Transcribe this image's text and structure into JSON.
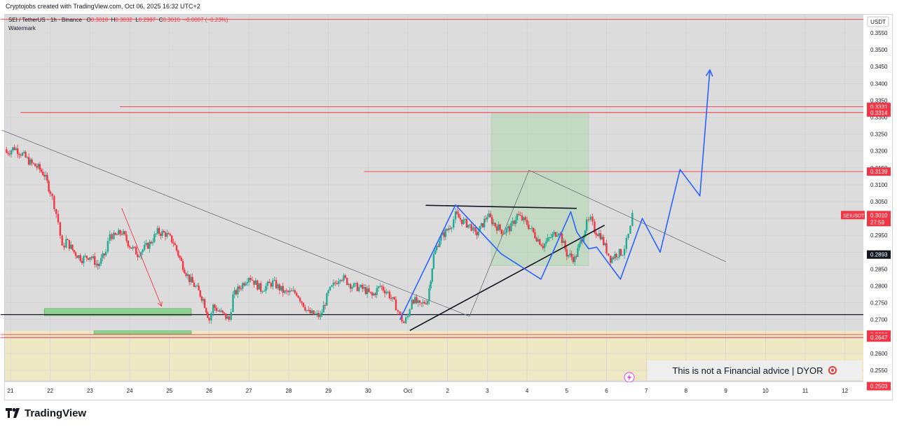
{
  "header": {
    "caption": "Cryptojobs created with TradingView.com, Oct 06, 2025 16:32 UTC+2"
  },
  "legend": {
    "symbol": "SEI / TetherUS · 1h · Binance",
    "o_label": "O",
    "o": "0.3018",
    "h_label": "H",
    "h": "0.3032",
    "l_label": "L",
    "l": "0.2997",
    "c_label": "C",
    "c": "0.3010",
    "change": "−0.0007 (−0.23%)",
    "watermark": "Watermark"
  },
  "footer": {
    "brand": "TradingView"
  },
  "disclaimer": {
    "text": "This is not a Financial advice | DYOR"
  },
  "colors": {
    "up": "#22ab94",
    "down": "#f23645",
    "blue": "#2962ff",
    "price_label": "#f23645",
    "zone_green": "#a5d6a7",
    "zone_yellow": "#fff3b0"
  },
  "chart_data": {
    "type": "candlestick",
    "currency": "USDT",
    "ylim": [
      0.2495,
      0.3605
    ],
    "y_ticks": [
      "0.3550",
      "0.3500",
      "0.3450",
      "0.3400",
      "0.3350",
      "0.3300",
      "0.3250",
      "0.3200",
      "0.3150",
      "0.3100",
      "0.3050",
      "0.3000",
      "0.2950",
      "0.2900",
      "0.2850",
      "0.2800",
      "0.2750",
      "0.2700",
      "0.2650",
      "0.2600",
      "0.2550"
    ],
    "x_ticks": [
      "21",
      "22",
      "23",
      "24",
      "25",
      "26",
      "27",
      "28",
      "29",
      "30",
      "Oct",
      "2",
      "3",
      "4",
      "5",
      "6",
      "7",
      "8",
      "9",
      "10",
      "11",
      "12"
    ],
    "price_labels": [
      {
        "value": "0.3331",
        "price": 0.3331
      },
      {
        "value": "0.3314",
        "price": 0.3314
      },
      {
        "value": "0.3139",
        "price": 0.3139
      },
      {
        "value": "0.2656",
        "price": 0.2656
      },
      {
        "value": "0.2647",
        "price": 0.2647
      },
      {
        "value": "0.2503",
        "price": 0.2503
      }
    ],
    "current_price": {
      "symbol": "SEIUSDT",
      "value": "0.3010",
      "countdown": "27:59",
      "price": 0.301
    },
    "marker_price": {
      "value": "0.2893",
      "price": 0.2893
    },
    "candles": [
      {
        "d": 20.9,
        "p": 0.3195
      },
      {
        "d": 21.1,
        "p": 0.321
      },
      {
        "d": 21.3,
        "p": 0.319
      },
      {
        "d": 21.5,
        "p": 0.3165
      },
      {
        "d": 21.7,
        "p": 0.315
      },
      {
        "d": 21.85,
        "p": 0.313
      },
      {
        "d": 22.0,
        "p": 0.308
      },
      {
        "d": 22.1,
        "p": 0.304
      },
      {
        "d": 22.2,
        "p": 0.299
      },
      {
        "d": 22.3,
        "p": 0.291
      },
      {
        "d": 22.4,
        "p": 0.2935
      },
      {
        "d": 22.6,
        "p": 0.29
      },
      {
        "d": 22.8,
        "p": 0.288
      },
      {
        "d": 23.0,
        "p": 0.289
      },
      {
        "d": 23.2,
        "p": 0.286
      },
      {
        "d": 23.4,
        "p": 0.29
      },
      {
        "d": 23.5,
        "p": 0.2955
      },
      {
        "d": 23.6,
        "p": 0.2945
      },
      {
        "d": 23.8,
        "p": 0.296
      },
      {
        "d": 24.0,
        "p": 0.292
      },
      {
        "d": 24.2,
        "p": 0.2895
      },
      {
        "d": 24.5,
        "p": 0.2925
      },
      {
        "d": 24.7,
        "p": 0.296
      },
      {
        "d": 24.9,
        "p": 0.2955
      },
      {
        "d": 25.1,
        "p": 0.293
      },
      {
        "d": 25.3,
        "p": 0.287
      },
      {
        "d": 25.5,
        "p": 0.282
      },
      {
        "d": 25.7,
        "p": 0.279
      },
      {
        "d": 25.85,
        "p": 0.276
      },
      {
        "d": 26.0,
        "p": 0.27
      },
      {
        "d": 26.1,
        "p": 0.274
      },
      {
        "d": 26.3,
        "p": 0.272
      },
      {
        "d": 26.5,
        "p": 0.27
      },
      {
        "d": 26.6,
        "p": 0.277
      },
      {
        "d": 26.8,
        "p": 0.28
      },
      {
        "d": 27.0,
        "p": 0.283
      },
      {
        "d": 27.3,
        "p": 0.279
      },
      {
        "d": 27.6,
        "p": 0.281
      },
      {
        "d": 27.9,
        "p": 0.278
      },
      {
        "d": 28.2,
        "p": 0.278
      },
      {
        "d": 28.5,
        "p": 0.272
      },
      {
        "d": 28.8,
        "p": 0.271
      },
      {
        "d": 29.0,
        "p": 0.278
      },
      {
        "d": 29.3,
        "p": 0.283
      },
      {
        "d": 29.6,
        "p": 0.28
      },
      {
        "d": 29.9,
        "p": 0.279
      },
      {
        "d": 30.1,
        "p": 0.277
      },
      {
        "d": 30.3,
        "p": 0.28
      },
      {
        "d": 30.5,
        "p": 0.278
      },
      {
        "d": 30.7,
        "p": 0.274
      },
      {
        "d": 30.8,
        "p": 0.271
      },
      {
        "d": 30.9,
        "p": 0.269
      },
      {
        "d": 31.0,
        "p": 0.271
      },
      {
        "d": 31.1,
        "p": 0.2765
      },
      {
        "d": 31.3,
        "p": 0.274
      },
      {
        "d": 31.5,
        "p": 0.276
      },
      {
        "d": 31.65,
        "p": 0.289
      },
      {
        "d": 31.8,
        "p": 0.294
      },
      {
        "d": 31.95,
        "p": 0.296
      },
      {
        "d": 32.1,
        "p": 0.2985
      },
      {
        "d": 32.2,
        "p": 0.301
      },
      {
        "d": 32.4,
        "p": 0.299
      },
      {
        "d": 32.6,
        "p": 0.2975
      },
      {
        "d": 32.7,
        "p": 0.295
      },
      {
        "d": 32.85,
        "p": 0.2975
      },
      {
        "d": 33.0,
        "p": 0.301
      },
      {
        "d": 33.2,
        "p": 0.298
      },
      {
        "d": 33.4,
        "p": 0.296
      },
      {
        "d": 33.6,
        "p": 0.2975
      },
      {
        "d": 33.75,
        "p": 0.301
      },
      {
        "d": 34.0,
        "p": 0.2985
      },
      {
        "d": 34.2,
        "p": 0.295
      },
      {
        "d": 34.4,
        "p": 0.292
      },
      {
        "d": 34.6,
        "p": 0.2945
      },
      {
        "d": 34.8,
        "p": 0.2965
      },
      {
        "d": 35.0,
        "p": 0.2895
      },
      {
        "d": 35.2,
        "p": 0.288
      },
      {
        "d": 35.35,
        "p": 0.293
      },
      {
        "d": 35.5,
        "p": 0.2985
      },
      {
        "d": 35.6,
        "p": 0.2995
      },
      {
        "d": 35.7,
        "p": 0.2965
      },
      {
        "d": 35.85,
        "p": 0.295
      },
      {
        "d": 36.0,
        "p": 0.2905
      },
      {
        "d": 36.1,
        "p": 0.288
      },
      {
        "d": 36.25,
        "p": 0.2895
      },
      {
        "d": 36.4,
        "p": 0.29
      },
      {
        "d": 36.5,
        "p": 0.293
      },
      {
        "d": 36.6,
        "p": 0.297
      },
      {
        "d": 36.65,
        "p": 0.301
      }
    ],
    "range_box": {
      "from_day": 33.1,
      "to_day": 35.55,
      "top": 0.331,
      "bottom": 0.286
    },
    "support_zones": [
      {
        "from_day": 21.85,
        "to_day": 25.55,
        "top": 0.2733,
        "bottom": 0.2712
      },
      {
        "from_day": 23.1,
        "to_day": 25.55,
        "top": 0.2667,
        "bottom": 0.2658
      }
    ],
    "supply_band": {
      "top": 0.2667,
      "bottom": 0.252
    },
    "horizontal_lines": [
      {
        "price": 0.359,
        "from_day": 20.75,
        "color": "#f23645"
      },
      {
        "price": 0.3331,
        "from_day": 23.75,
        "color": "#f23645"
      },
      {
        "price": 0.3314,
        "from_day": 21.25,
        "color": "#f23645"
      },
      {
        "price": 0.3139,
        "from_day": 29.9,
        "color": "#f23645"
      },
      {
        "price": 0.2656,
        "from_day": 20.75,
        "color": "#f23645"
      },
      {
        "price": 0.2647,
        "from_day": 20.75,
        "color": "#f23645"
      },
      {
        "price": 0.2715,
        "from_day": 20.75,
        "color": "#131722"
      }
    ],
    "trend_lines": [
      {
        "points": [
          [
            20.78,
            0.3262
          ],
          [
            32.55,
            0.271
          ]
        ],
        "color": "#6b6f7a",
        "width": 0.8
      },
      {
        "points": [
          [
            32.55,
            0.271
          ],
          [
            34.05,
            0.3143
          ],
          [
            39.0,
            0.2872
          ]
        ],
        "color": "#6b6f7a",
        "width": 0.8
      },
      {
        "points": [
          [
            31.05,
            0.2668
          ],
          [
            35.95,
            0.298
          ]
        ],
        "color": "#131722",
        "width": 1.6
      },
      {
        "points": [
          [
            31.45,
            0.3039
          ],
          [
            35.25,
            0.303
          ]
        ],
        "color": "#131722",
        "width": 1.6
      }
    ],
    "projection_path": [
      [
        30.8,
        0.27
      ],
      [
        32.2,
        0.304
      ],
      [
        33.35,
        0.2895
      ],
      [
        34.35,
        0.282
      ],
      [
        35.1,
        0.302
      ],
      [
        35.25,
        0.296
      ],
      [
        35.55,
        0.291
      ],
      [
        35.75,
        0.2915
      ],
      [
        36.35,
        0.282
      ],
      [
        36.9,
        0.3
      ],
      [
        37.35,
        0.29
      ],
      [
        37.85,
        0.3145
      ],
      [
        38.35,
        0.3067
      ],
      [
        38.6,
        0.344
      ]
    ],
    "red_arrow": [
      [
        23.8,
        0.303
      ],
      [
        24.8,
        0.274
      ]
    ]
  }
}
